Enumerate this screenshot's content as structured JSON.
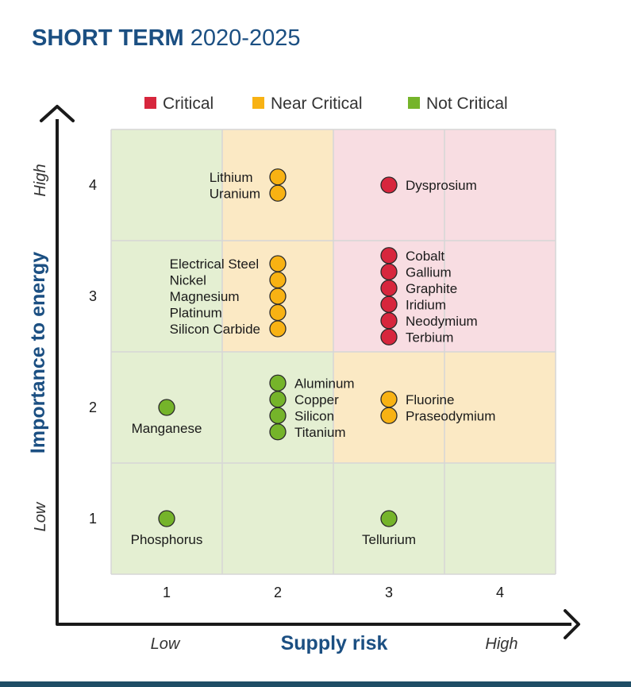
{
  "header": {
    "title_bold": "SHORT TERM",
    "title_rest": "2020-2025"
  },
  "colors": {
    "critical": "#d7263d",
    "near_critical": "#f8b213",
    "not_critical": "#75b42a",
    "bg_green": "#e4efd2",
    "bg_yellow": "#fbe9c4",
    "bg_pink": "#f8dde2",
    "axis_title": "#1b4f82"
  },
  "chart_data": {
    "type": "scatter",
    "title": "SHORT TERM 2020-2025",
    "xlabel": "Supply risk",
    "ylabel": "Importance to energy",
    "x_low_label": "Low",
    "x_high_label": "High",
    "y_low_label": "Low",
    "y_high_label": "High",
    "xlim": [
      0.5,
      4.5
    ],
    "ylim": [
      0.5,
      4.5
    ],
    "x_ticks": [
      "1",
      "2",
      "3",
      "4"
    ],
    "y_ticks": [
      "1",
      "2",
      "3",
      "4"
    ],
    "grid": true,
    "legend_position": "top",
    "legend": [
      {
        "key": "critical",
        "label": "Critical"
      },
      {
        "key": "near_critical",
        "label": "Near Critical"
      },
      {
        "key": "not_critical",
        "label": "Not Critical"
      }
    ],
    "region_colors": [
      [
        "not_critical",
        "not_critical",
        "not_critical",
        "not_critical"
      ],
      [
        "not_critical",
        "not_critical",
        "near_critical",
        "near_critical"
      ],
      [
        "not_critical",
        "near_critical",
        "critical",
        "critical"
      ],
      [
        "not_critical",
        "near_critical",
        "critical",
        "critical"
      ]
    ],
    "groups": [
      {
        "category": "near_critical",
        "x": 2,
        "y": 4,
        "label_side": "left",
        "materials": [
          "Lithium",
          "Uranium"
        ]
      },
      {
        "category": "critical",
        "x": 3,
        "y": 4,
        "label_side": "right",
        "materials": [
          "Dysprosium"
        ]
      },
      {
        "category": "near_critical",
        "x": 2,
        "y": 3,
        "label_side": "left",
        "materials": [
          "Electrical Steel",
          "Nickel",
          "Magnesium",
          "Platinum",
          "Silicon Carbide"
        ]
      },
      {
        "category": "critical",
        "x": 3,
        "y": 3,
        "label_side": "right",
        "materials": [
          "Cobalt",
          "Gallium",
          "Graphite",
          "Iridium",
          "Neodymium",
          "Terbium"
        ]
      },
      {
        "category": "not_critical",
        "x": 1,
        "y": 2,
        "label_side": "below",
        "materials": [
          "Manganese"
        ]
      },
      {
        "category": "not_critical",
        "x": 2,
        "y": 2,
        "label_side": "right",
        "materials": [
          "Aluminum",
          "Copper",
          "Silicon",
          "Titanium"
        ]
      },
      {
        "category": "near_critical",
        "x": 3,
        "y": 2,
        "label_side": "right",
        "materials": [
          "Fluorine",
          "Praseodymium"
        ]
      },
      {
        "category": "not_critical",
        "x": 1,
        "y": 1,
        "label_side": "below",
        "materials": [
          "Phosphorus"
        ]
      },
      {
        "category": "not_critical",
        "x": 3,
        "y": 1,
        "label_side": "below",
        "materials": [
          "Tellurium"
        ]
      }
    ]
  }
}
